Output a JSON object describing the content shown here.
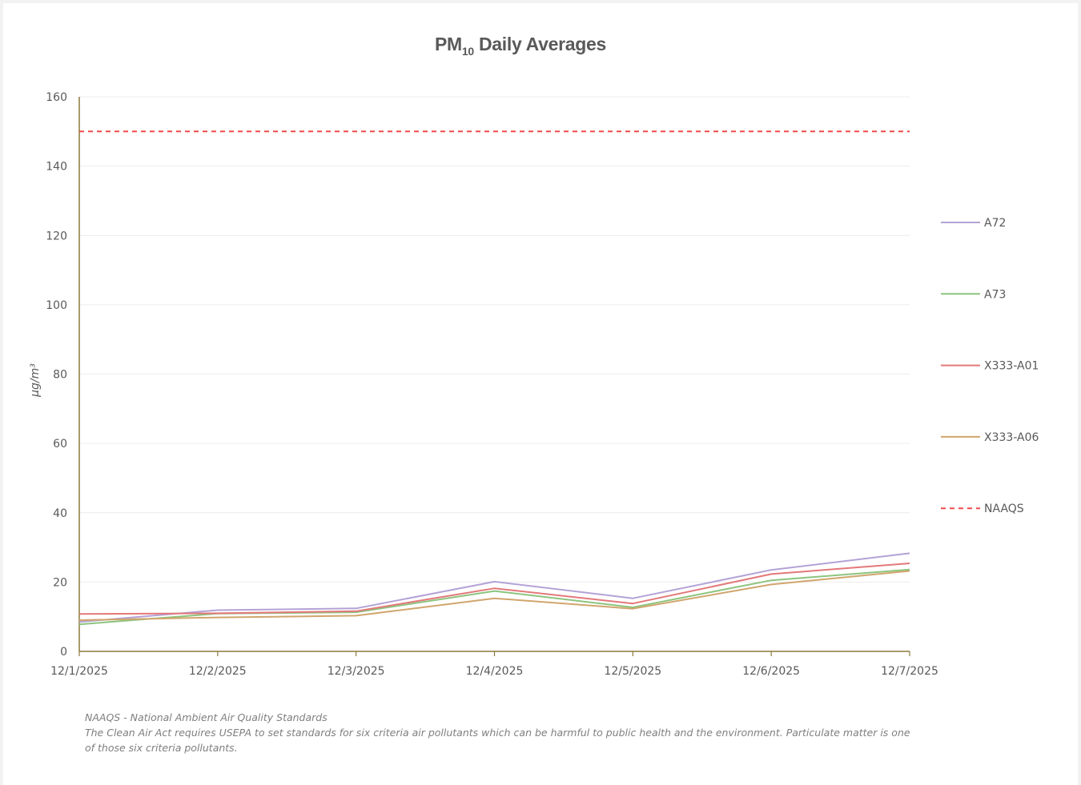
{
  "chart_data": {
    "type": "line",
    "title_main": "PM",
    "title_sub": "10",
    "title_rest": " Daily Averages",
    "ylabel": "µg/m³",
    "xlabel": "",
    "ylim": [
      0,
      160
    ],
    "yticks": [
      "0",
      "20",
      "40",
      "60",
      "80",
      "100",
      "120",
      "140",
      "160"
    ],
    "categories": [
      "12/1/2025",
      "12/2/2025",
      "12/3/2025",
      "12/4/2025",
      "12/5/2025",
      "12/6/2025",
      "12/7/2025"
    ],
    "grid": true,
    "legend_position": "right",
    "series": [
      {
        "name": "A72",
        "color": "#b4a2d6",
        "dash": "none",
        "values": [
          8.5,
          11.9,
          12.4,
          20.1,
          15.3,
          23.5,
          28.3
        ]
      },
      {
        "name": "A73",
        "color": "#8dc47e",
        "dash": "none",
        "values": [
          7.8,
          10.9,
          11.3,
          17.4,
          12.7,
          20.5,
          23.6
        ]
      },
      {
        "name": "X333-A01",
        "color": "#e3787a",
        "dash": "none",
        "values": [
          10.8,
          11.0,
          11.6,
          18.2,
          13.8,
          22.3,
          25.4
        ]
      },
      {
        "name": "X333-A06",
        "color": "#d1a56d",
        "dash": "none",
        "values": [
          9.0,
          9.8,
          10.3,
          15.3,
          12.3,
          19.3,
          23.2
        ]
      },
      {
        "name": "NAAQS",
        "color": "#f04a4a",
        "dash": "dashed",
        "values": [
          150,
          150,
          150,
          150,
          150,
          150,
          150
        ]
      }
    ]
  },
  "footnote": {
    "line1": "NAAQS - National Ambient Air Quality Standards",
    "line2": "The Clean Air Act requires USEPA to set standards for six criteria air pollutants which can be harmful to public health and the environment.  Particulate matter is one of those six criteria pollutants."
  }
}
